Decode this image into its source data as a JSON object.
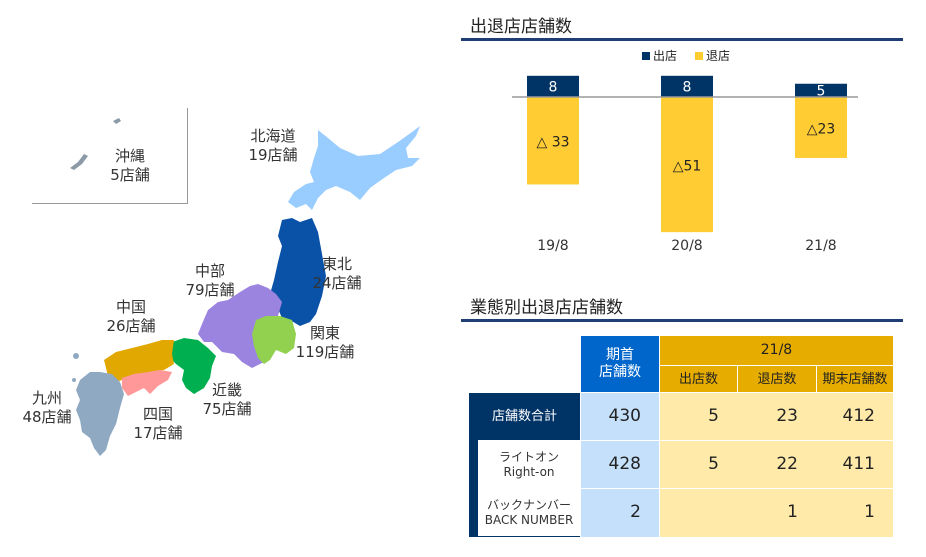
{
  "map": {
    "regions": [
      {
        "name": "沖縄",
        "count": "5店舗",
        "color": "#8c9aa8"
      },
      {
        "name": "北海道",
        "count": "19店舗",
        "color": "#99ccff"
      },
      {
        "name": "東北",
        "count": "24店舗",
        "color": "#0a52a8"
      },
      {
        "name": "中部",
        "count": "79店舗",
        "color": "#9b84e0"
      },
      {
        "name": "関東",
        "count": "119店舗",
        "color": "#92d050"
      },
      {
        "name": "中国",
        "count": "26店舗",
        "color": "#e0a800"
      },
      {
        "name": "近畿",
        "count": "75店舗",
        "color": "#00b050"
      },
      {
        "name": "九州",
        "count": "48店舗",
        "color": "#8ea9c1"
      },
      {
        "name": "四国",
        "count": "17店舗",
        "color": "#ff9999"
      }
    ]
  },
  "chart_section": {
    "title": "出退店店舗数"
  },
  "chart_data": {
    "type": "bar",
    "title": "出退店店舗数",
    "categories": [
      "19/8",
      "20/8",
      "21/8"
    ],
    "series": [
      {
        "name": "出店",
        "values": [
          8,
          8,
          5
        ],
        "labels": [
          "8",
          "8",
          "5"
        ],
        "color": "#003366"
      },
      {
        "name": "退店",
        "values": [
          -33,
          -51,
          -23
        ],
        "labels": [
          "△ 33",
          "△51",
          "△23"
        ],
        "color": "#ffcc33"
      }
    ],
    "legend_position": "top",
    "grid": false
  },
  "table_section": {
    "title": "業態別出退店店舗数",
    "header_opening": "期首\n店舗数",
    "header_period": "21/8",
    "sub_headers": [
      "出店数",
      "退店数",
      "期末店舗数"
    ],
    "rows": [
      {
        "label": "店舗数合計",
        "opening": "430",
        "opened": "5",
        "closed": "23",
        "ending": "412"
      },
      {
        "label": "ライトオン",
        "label2": "Right-on",
        "opening": "428",
        "opened": "5",
        "closed": "22",
        "ending": "411"
      },
      {
        "label": "バックナンバー",
        "label2": "BACK NUMBER",
        "opening": "2",
        "opened": "",
        "closed": "1",
        "ending": "1"
      }
    ]
  }
}
